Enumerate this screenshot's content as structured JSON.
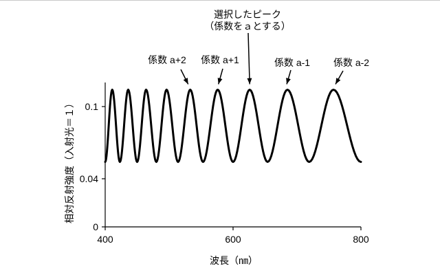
{
  "chart_data": {
    "type": "line",
    "xlabel": "波長（㎚）",
    "ylabel": "相対反射強度（入射光＝１）",
    "xlim": [
      400,
      800
    ],
    "ylim": [
      0,
      0.12
    ],
    "xticks": [
      400,
      600,
      800
    ],
    "xtick_labels": [
      "400",
      "600",
      "800"
    ],
    "yticks": [
      0,
      0.04,
      0.1
    ],
    "ytick_labels": [
      "0",
      "0.04",
      "0.1"
    ],
    "grid": false,
    "legend": "none",
    "series": [
      {
        "color": "#000000",
        "x": [
          400,
          411,
          423,
          436,
          450,
          464,
          480,
          496,
          514,
          533,
          553,
          576,
          600,
          626,
          654,
          685,
          719,
          757,
          800
        ],
        "y": [
          0.054,
          0.114,
          0.054,
          0.114,
          0.054,
          0.114,
          0.054,
          0.114,
          0.054,
          0.114,
          0.054,
          0.114,
          0.054,
          0.114,
          0.054,
          0.114,
          0.054,
          0.114,
          0.054
        ]
      }
    ],
    "annotations": [
      {
        "lines": [
          "選択したピーク",
          "（係数をａとする）"
        ],
        "x": 626,
        "y": 0.114
      },
      {
        "lines": [
          "係数 a+2"
        ],
        "x": 533,
        "y": 0.114
      },
      {
        "lines": [
          "係数 a+1"
        ],
        "x": 576,
        "y": 0.114
      },
      {
        "lines": [
          "係数 a-1"
        ],
        "x": 685,
        "y": 0.114
      },
      {
        "lines": [
          "係数 a-2"
        ],
        "x": 757,
        "y": 0.114
      }
    ]
  }
}
